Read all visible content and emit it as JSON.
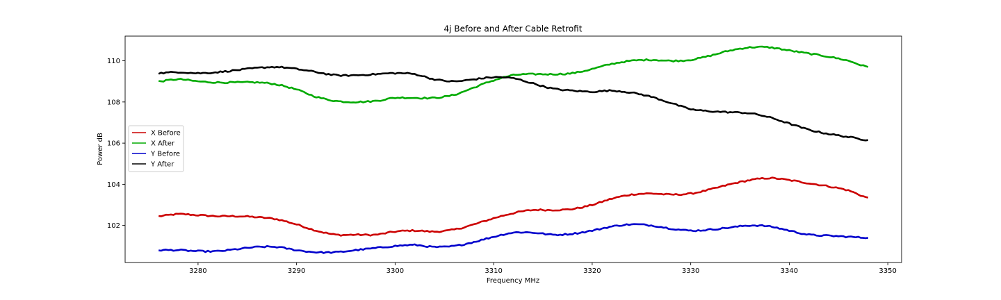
{
  "chart_data": {
    "type": "line",
    "title": "4j Before and After Cable Retrofit",
    "xlabel": "Frequency MHz",
    "ylabel": "Power dB",
    "xlim": [
      3272.6,
      3351.4
    ],
    "ylim": [
      100.2,
      111.2
    ],
    "xticks": [
      3280,
      3290,
      3300,
      3310,
      3320,
      3330,
      3340,
      3350
    ],
    "yticks": [
      102,
      104,
      106,
      108,
      110
    ],
    "grid": false,
    "legend_position": "center-left",
    "x": [
      3276,
      3278,
      3280,
      3282,
      3284,
      3286,
      3288,
      3290,
      3292,
      3294,
      3296,
      3298,
      3300,
      3302,
      3304,
      3306,
      3308,
      3310,
      3312,
      3314,
      3316,
      3318,
      3320,
      3322,
      3324,
      3326,
      3328,
      3330,
      3332,
      3334,
      3336,
      3338,
      3340,
      3342,
      3344,
      3346,
      3348
    ],
    "series": [
      {
        "name": "X Before",
        "color": "#cc0000",
        "values": [
          102.45,
          102.55,
          102.5,
          102.45,
          102.45,
          102.4,
          102.3,
          102.05,
          101.75,
          101.55,
          101.55,
          101.55,
          101.7,
          101.75,
          101.7,
          101.8,
          102.05,
          102.35,
          102.6,
          102.75,
          102.75,
          102.8,
          103.0,
          103.3,
          103.5,
          103.55,
          103.5,
          103.55,
          103.75,
          104.0,
          104.2,
          104.3,
          104.2,
          104.05,
          103.9,
          103.7,
          103.35
        ]
      },
      {
        "name": "X After",
        "color": "#00aa00",
        "values": [
          109.0,
          109.1,
          109.0,
          108.95,
          108.95,
          108.95,
          108.85,
          108.6,
          108.25,
          108.05,
          108.0,
          108.05,
          108.2,
          108.2,
          108.2,
          108.35,
          108.7,
          109.05,
          109.3,
          109.35,
          109.35,
          109.4,
          109.6,
          109.85,
          110.0,
          110.05,
          110.0,
          110.05,
          110.25,
          110.5,
          110.65,
          110.65,
          110.5,
          110.35,
          110.2,
          110.0,
          109.7
        ]
      },
      {
        "name": "Y Before",
        "color": "#0000cc",
        "values": [
          100.8,
          100.8,
          100.75,
          100.75,
          100.85,
          100.95,
          100.95,
          100.8,
          100.7,
          100.7,
          100.8,
          100.9,
          101.0,
          101.05,
          100.95,
          101.0,
          101.2,
          101.45,
          101.65,
          101.65,
          101.55,
          101.6,
          101.75,
          101.95,
          102.05,
          102.0,
          101.85,
          101.75,
          101.8,
          101.9,
          102.0,
          101.95,
          101.75,
          101.55,
          101.5,
          101.45,
          101.4
        ]
      },
      {
        "name": "Y After",
        "color": "#000000",
        "values": [
          109.4,
          109.45,
          109.4,
          109.45,
          109.55,
          109.65,
          109.7,
          109.6,
          109.45,
          109.3,
          109.3,
          109.35,
          109.4,
          109.35,
          109.1,
          109.0,
          109.1,
          109.2,
          109.15,
          108.9,
          108.65,
          108.55,
          108.5,
          108.55,
          108.45,
          108.25,
          107.95,
          107.65,
          107.55,
          107.5,
          107.45,
          107.25,
          106.95,
          106.65,
          106.45,
          106.3,
          106.15
        ]
      }
    ]
  }
}
